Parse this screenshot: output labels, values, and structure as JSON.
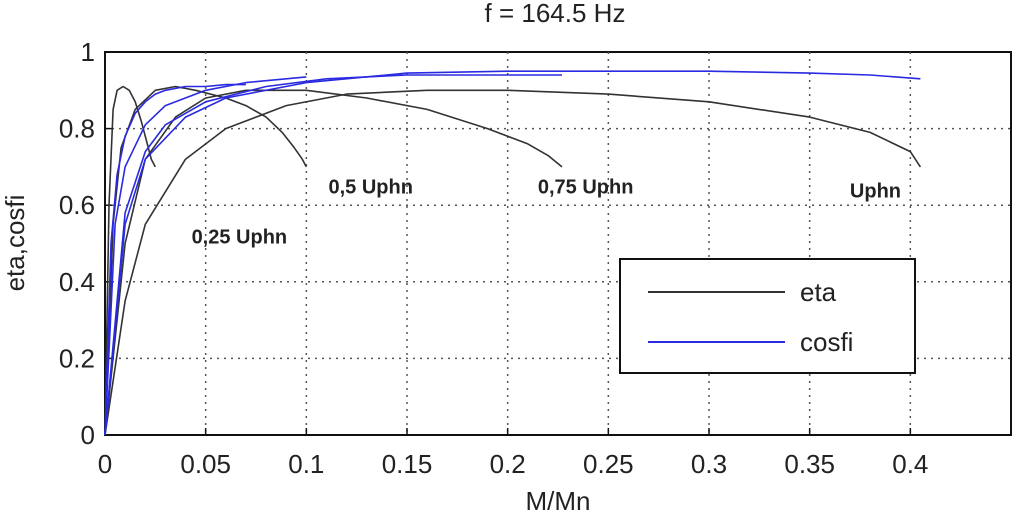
{
  "chart_data": {
    "type": "line",
    "title": "f = 164.5 Hz",
    "xlabel": "M/Mn",
    "ylabel": "eta,cosfi",
    "xlim": [
      0,
      0.45
    ],
    "ylim": [
      0,
      1
    ],
    "grid": true,
    "x_ticks": [
      "0",
      "0.05",
      "0.1",
      "0.15",
      "0.2",
      "0.25",
      "0.3",
      "0.35",
      "0.4"
    ],
    "y_ticks": [
      "0",
      "0.2",
      "0.4",
      "0.6",
      "0.8",
      "1"
    ],
    "legend": {
      "placement": "lower-right",
      "entries": [
        {
          "label": "eta",
          "color": "#333333"
        },
        {
          "label": "cosfi",
          "color": "#2a2ae0"
        }
      ]
    },
    "annotations": [
      {
        "text": "0,25 Uphn",
        "x": 0.043,
        "y": 0.5
      },
      {
        "text": "0,5 Uphn",
        "x": 0.111,
        "y": 0.63
      },
      {
        "text": "0,75 Uphn",
        "x": 0.215,
        "y": 0.63
      },
      {
        "text": "Uphn",
        "x": 0.37,
        "y": 0.62
      }
    ],
    "series": [
      {
        "kind": "eta",
        "color": "#333333",
        "x": [
          0,
          0.002,
          0.004,
          0.006,
          0.009,
          0.012,
          0.015,
          0.018,
          0.021,
          0.023,
          0.025
        ],
        "y": [
          0,
          0.6,
          0.85,
          0.9,
          0.91,
          0.9,
          0.87,
          0.82,
          0.76,
          0.72,
          0.7
        ]
      },
      {
        "kind": "eta",
        "color": "#333333",
        "x": [
          0,
          0.004,
          0.008,
          0.015,
          0.025,
          0.035,
          0.045,
          0.06,
          0.07,
          0.08,
          0.088,
          0.094,
          0.098,
          0.1
        ],
        "y": [
          0,
          0.55,
          0.75,
          0.85,
          0.9,
          0.91,
          0.9,
          0.88,
          0.86,
          0.83,
          0.79,
          0.75,
          0.72,
          0.7
        ]
      },
      {
        "kind": "eta",
        "color": "#333333",
        "x": [
          0,
          0.01,
          0.02,
          0.035,
          0.05,
          0.07,
          0.1,
          0.13,
          0.16,
          0.19,
          0.21,
          0.22,
          0.227
        ],
        "y": [
          0,
          0.5,
          0.72,
          0.83,
          0.88,
          0.9,
          0.9,
          0.88,
          0.85,
          0.8,
          0.76,
          0.73,
          0.7
        ]
      },
      {
        "kind": "eta",
        "color": "#333333",
        "x": [
          0,
          0.01,
          0.02,
          0.04,
          0.06,
          0.09,
          0.12,
          0.16,
          0.2,
          0.25,
          0.3,
          0.35,
          0.38,
          0.4,
          0.405
        ],
        "y": [
          0,
          0.35,
          0.55,
          0.72,
          0.8,
          0.86,
          0.89,
          0.9,
          0.9,
          0.89,
          0.87,
          0.83,
          0.79,
          0.74,
          0.7
        ]
      },
      {
        "kind": "cosfi",
        "color": "#2a2ae0",
        "x": [
          0,
          0.003,
          0.006,
          0.01,
          0.015,
          0.02,
          0.025,
          0.03,
          0.04,
          0.05,
          0.06,
          0.07
        ],
        "y": [
          0,
          0.5,
          0.68,
          0.78,
          0.84,
          0.87,
          0.89,
          0.9,
          0.91,
          0.91,
          0.915,
          0.915
        ]
      },
      {
        "kind": "cosfi",
        "color": "#2a2ae0",
        "x": [
          0,
          0.005,
          0.01,
          0.02,
          0.03,
          0.05,
          0.07,
          0.09,
          0.1
        ],
        "y": [
          0,
          0.55,
          0.7,
          0.81,
          0.86,
          0.9,
          0.92,
          0.93,
          0.935
        ]
      },
      {
        "kind": "cosfi",
        "color": "#2a2ae0",
        "x": [
          0,
          0.01,
          0.02,
          0.03,
          0.05,
          0.08,
          0.11,
          0.15,
          0.19,
          0.227
        ],
        "y": [
          0,
          0.58,
          0.74,
          0.81,
          0.87,
          0.91,
          0.93,
          0.94,
          0.94,
          0.94
        ]
      },
      {
        "kind": "cosfi",
        "color": "#2a2ae0",
        "x": [
          0,
          0.01,
          0.02,
          0.04,
          0.06,
          0.1,
          0.15,
          0.2,
          0.25,
          0.3,
          0.35,
          0.38,
          0.405
        ],
        "y": [
          0,
          0.55,
          0.72,
          0.83,
          0.88,
          0.92,
          0.945,
          0.95,
          0.95,
          0.95,
          0.945,
          0.94,
          0.93
        ]
      }
    ]
  }
}
